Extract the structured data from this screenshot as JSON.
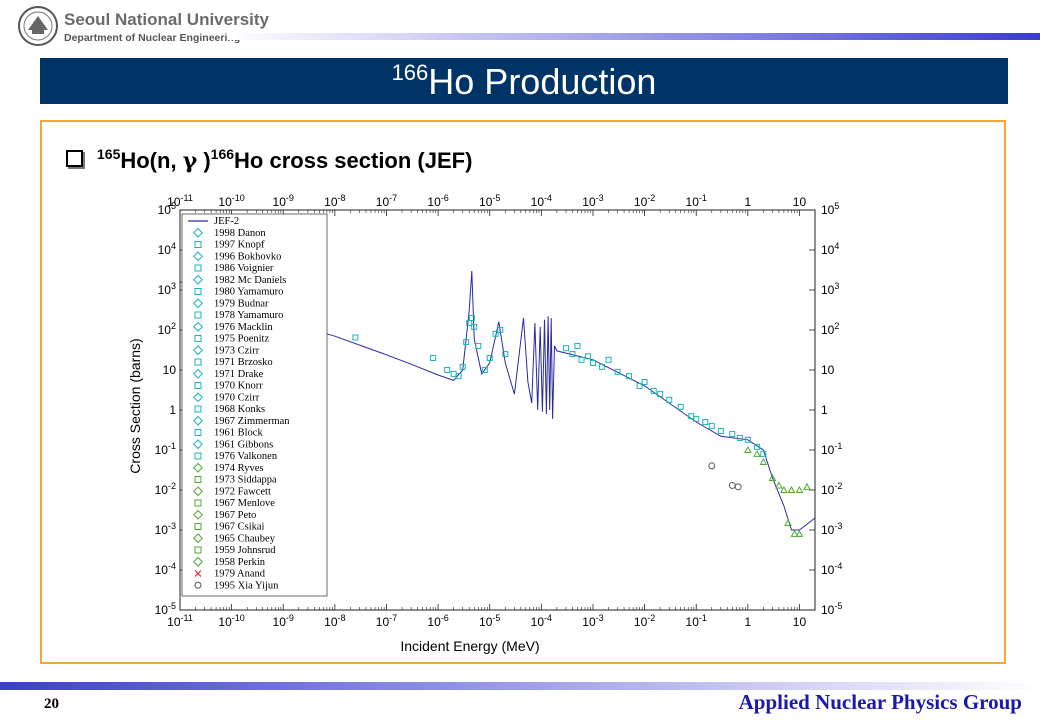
{
  "header": {
    "university": "Seoul National University",
    "department": "Department of Nuclear Engineering"
  },
  "slide": {
    "title_sup": "166",
    "title_main": "Ho Production",
    "bullet": {
      "pre_sup": "165",
      "part1": "Ho(n, ",
      "gamma": "γ",
      "part2": " )",
      "mid_sup": "166",
      "part3": "Ho cross section (JEF)"
    }
  },
  "footer": {
    "page_number": "20",
    "group": "Applied Nuclear Physics Group"
  },
  "colors": {
    "title_bar": "#003366",
    "box_border": "#f0a830",
    "curve": "#2b2ba0",
    "data_markers": "#19b5b5",
    "green_markers": "#4caa30"
  },
  "chart_data": {
    "type": "scatter",
    "xlabel": "Incident Energy (MeV)",
    "ylabel": "Cross Section (barns)",
    "xscale": "log",
    "yscale": "log",
    "xlim": [
      1e-11,
      20
    ],
    "ylim": [
      1e-05,
      100000.0
    ],
    "x_ticks": [
      {
        "sup": "-11",
        "v": 1e-11
      },
      {
        "sup": "-10",
        "v": 1e-10
      },
      {
        "sup": "-9",
        "v": 1e-09
      },
      {
        "sup": "-8",
        "v": 1e-08
      },
      {
        "sup": "-7",
        "v": 1e-07
      },
      {
        "sup": "-6",
        "v": 1e-06
      },
      {
        "sup": "-5",
        "v": 1e-05
      },
      {
        "sup": "-4",
        "v": 0.0001
      },
      {
        "sup": "-3",
        "v": 0.001
      },
      {
        "sup": "-2",
        "v": 0.01
      },
      {
        "sup": "-1",
        "v": 0.1
      },
      {
        "text": "1",
        "v": 1
      },
      {
        "text": "10",
        "v": 10
      }
    ],
    "y_ticks": [
      {
        "sup": "-5",
        "v": 1e-05
      },
      {
        "sup": "-4",
        "v": 0.0001
      },
      {
        "sup": "-3",
        "v": 0.001
      },
      {
        "sup": "-2",
        "v": 0.01
      },
      {
        "sup": "-1",
        "v": 0.1
      },
      {
        "text": "1",
        "v": 1
      },
      {
        "text": "10",
        "v": 10
      },
      {
        "sup": "2",
        "v": 100
      },
      {
        "sup": "3",
        "v": 1000
      },
      {
        "sup": "4",
        "v": 10000
      },
      {
        "sup": "5",
        "v": 100000
      }
    ],
    "legend_position": "upper-left",
    "legend": [
      "JEF-2",
      "1998 Danon",
      "1997 Knopf",
      "1996 Bokhovko",
      "1986 Voignier",
      "1982 Mc Daniels",
      "1980 Yamamuro",
      "1979 Budnar",
      "1978 Yamamuro",
      "1976 Macklin",
      "1975 Poenitz",
      "1973 Czirr",
      "1971 Brzosko",
      "1971 Drake",
      "1970 Knorr",
      "1970 Czirr",
      "1968 Konks",
      "1967 Zimmerman",
      "1961 Block",
      "1961 Gibbons",
      "1976 Valkonen",
      "1974 Ryves",
      "1973 Siddappa",
      "1972 Fawcett",
      "1967 Menlove",
      "1967 Peto",
      "1967 Csikai",
      "1965 Chaubey",
      "1959 Johnsrud",
      "1958 Perkin",
      "1979 Anand",
      "1995 Xia Yijun"
    ],
    "jef2_curve": [
      [
        1e-11,
        1600
      ],
      [
        1e-10,
        500
      ],
      [
        1e-09,
        165
      ],
      [
        1e-08,
        70
      ],
      [
        1e-07,
        24
      ],
      [
        3e-07,
        14
      ],
      [
        1e-06,
        7.5
      ],
      [
        2e-06,
        5.5
      ],
      [
        3e-06,
        10
      ],
      [
        4e-06,
        300
      ],
      [
        4.5e-06,
        3000
      ],
      [
        5e-06,
        60
      ],
      [
        7e-06,
        8
      ],
      [
        1e-05,
        15
      ],
      [
        1.5e-05,
        160
      ],
      [
        2e-05,
        15
      ],
      [
        3e-05,
        2.5
      ],
      [
        4.5e-05,
        200
      ],
      [
        5.5e-05,
        5
      ],
      [
        6.5e-05,
        1.5
      ],
      [
        7.5e-05,
        150
      ],
      [
        8.5e-05,
        1
      ],
      [
        9.5e-05,
        120
      ],
      [
        0.000105,
        0.9
      ],
      [
        0.000115,
        180
      ],
      [
        0.000125,
        0.8
      ],
      [
        0.000135,
        220
      ],
      [
        0.000145,
        1
      ],
      [
        0.000155,
        200
      ],
      [
        0.000165,
        0.6
      ],
      [
        0.00018,
        40
      ],
      [
        0.0002,
        30
      ],
      [
        0.001,
        18
      ],
      [
        0.01,
        4
      ],
      [
        0.1,
        0.5
      ],
      [
        0.3,
        0.22
      ],
      [
        1,
        0.18
      ],
      [
        2,
        0.1
      ],
      [
        3,
        0.02
      ],
      [
        5,
        0.004
      ],
      [
        7,
        0.001
      ],
      [
        10,
        0.001
      ],
      [
        20,
        0.002
      ]
    ],
    "measurements": [
      {
        "x": 2.5e-08,
        "y": 65
      },
      {
        "x": 8e-07,
        "y": 20
      },
      {
        "x": 1.5e-06,
        "y": 10
      },
      {
        "x": 2e-06,
        "y": 8
      },
      {
        "x": 2.5e-06,
        "y": 7
      },
      {
        "x": 3e-06,
        "y": 12
      },
      {
        "x": 3.5e-06,
        "y": 50
      },
      {
        "x": 4e-06,
        "y": 150
      },
      {
        "x": 4.5e-06,
        "y": 200
      },
      {
        "x": 5e-06,
        "y": 120
      },
      {
        "x": 6e-06,
        "y": 40
      },
      {
        "x": 8e-06,
        "y": 10
      },
      {
        "x": 1e-05,
        "y": 20
      },
      {
        "x": 1.3e-05,
        "y": 80
      },
      {
        "x": 1.6e-05,
        "y": 100
      },
      {
        "x": 2e-05,
        "y": 25
      },
      {
        "x": 0.0003,
        "y": 35
      },
      {
        "x": 0.0004,
        "y": 25
      },
      {
        "x": 0.0005,
        "y": 40
      },
      {
        "x": 0.0006,
        "y": 18
      },
      {
        "x": 0.0008,
        "y": 22
      },
      {
        "x": 0.001,
        "y": 15
      },
      {
        "x": 0.0015,
        "y": 12
      },
      {
        "x": 0.002,
        "y": 18
      },
      {
        "x": 0.003,
        "y": 9
      },
      {
        "x": 0.005,
        "y": 7
      },
      {
        "x": 0.008,
        "y": 4
      },
      {
        "x": 0.01,
        "y": 5
      },
      {
        "x": 0.015,
        "y": 3
      },
      {
        "x": 0.02,
        "y": 2.5
      },
      {
        "x": 0.03,
        "y": 1.8
      },
      {
        "x": 0.05,
        "y": 1.2
      },
      {
        "x": 0.08,
        "y": 0.7
      },
      {
        "x": 0.1,
        "y": 0.6
      },
      {
        "x": 0.15,
        "y": 0.5
      },
      {
        "x": 0.2,
        "y": 0.4
      },
      {
        "x": 0.3,
        "y": 0.3
      },
      {
        "x": 0.5,
        "y": 0.25
      },
      {
        "x": 0.7,
        "y": 0.2
      },
      {
        "x": 1,
        "y": 0.18
      },
      {
        "x": 1.5,
        "y": 0.12
      },
      {
        "x": 2,
        "y": 0.08
      }
    ],
    "measurements_high_energy": [
      {
        "x": 1,
        "y": 0.1
      },
      {
        "x": 1.5,
        "y": 0.08
      },
      {
        "x": 2,
        "y": 0.05
      },
      {
        "x": 3,
        "y": 0.02
      },
      {
        "x": 4,
        "y": 0.013
      },
      {
        "x": 5,
        "y": 0.01
      },
      {
        "x": 7,
        "y": 0.01
      },
      {
        "x": 10,
        "y": 0.01
      },
      {
        "x": 14,
        "y": 0.012
      },
      {
        "x": 6,
        "y": 0.0015
      },
      {
        "x": 8,
        "y": 0.0008
      },
      {
        "x": 10,
        "y": 0.0008
      }
    ],
    "xia_yijun_points": [
      {
        "x": 0.2,
        "y": 0.04
      },
      {
        "x": 0.5,
        "y": 0.013
      },
      {
        "x": 0.65,
        "y": 0.012
      }
    ]
  }
}
